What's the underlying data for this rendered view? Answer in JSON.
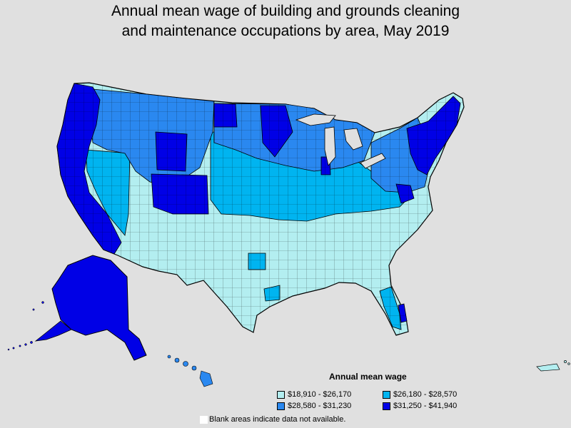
{
  "title_line1": "Annual mean wage of building and grounds cleaning",
  "title_line2": "and maintenance occupations by area, May 2019",
  "legend": {
    "title": "Annual mean wage",
    "items": [
      {
        "label": "$18,910 - $26,170",
        "color": "#b3eef0"
      },
      {
        "label": "$26,180 - $28,570",
        "color": "#00b4f0"
      },
      {
        "label": "$28,580 - $31,230",
        "color": "#2a88f0"
      },
      {
        "label": "$31,250 - $41,940",
        "color": "#0000e6"
      }
    ]
  },
  "blank_note": "Blank areas indicate data not available."
}
